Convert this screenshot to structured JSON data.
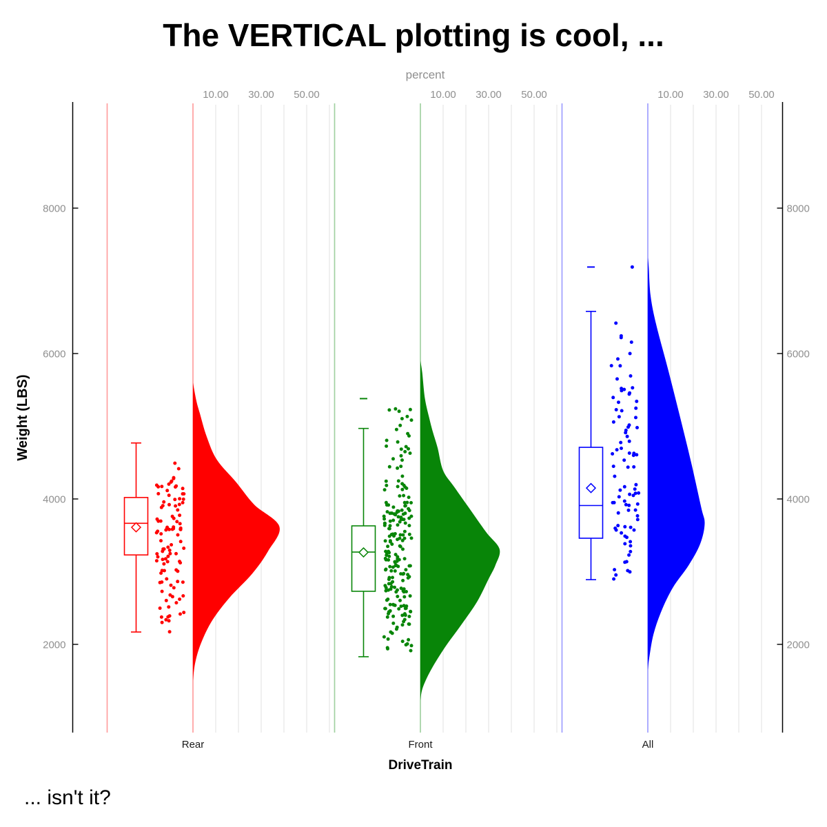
{
  "title": "The VERTICAL plotting is cool, ...",
  "footer": "... isn't it?",
  "chart_data": {
    "type": "raincloud (half-violin + box plot + jittered strip, vertical)",
    "title": "The VERTICAL plotting is cool, ...",
    "caption": "... isn't it?",
    "x_axis": {
      "label": "DriveTrain",
      "categories": [
        "Rear",
        "Front",
        "All"
      ]
    },
    "y_axis": {
      "label": "Weight (LBS)",
      "ticks": [
        8000,
        6000,
        4000,
        2000
      ],
      "range": [
        790,
        9440
      ],
      "shown_on": "left and right"
    },
    "top_axis": {
      "label": "percent",
      "tick_labels": [
        "10.00",
        "30.00",
        "50.00"
      ],
      "ticks_percent": [
        10,
        30,
        50
      ],
      "gridlines_percent": [
        10,
        20,
        30,
        40,
        50,
        60
      ],
      "repeated_per_group": true
    },
    "grid": "light vertical gridlines for percent axis only",
    "groups": [
      {
        "name": "Rear",
        "color": "#FF0000",
        "n_points": 102,
        "points_seed": 3,
        "points_weight_range": [
          2170,
          4780
        ],
        "box": {
          "whisker_low": 2170,
          "q1": 3230,
          "median": 3665,
          "q3": 4020,
          "whisker_high": 4770,
          "mean": 3610
        },
        "outlier_caps": [],
        "extra_points": [],
        "violin_profile_weight_percent": [
          [
            5600,
            0
          ],
          [
            5350,
            1.5
          ],
          [
            5180,
            3
          ],
          [
            4860,
            6
          ],
          [
            4540,
            10.5
          ],
          [
            4230,
            19
          ],
          [
            3920,
            27
          ],
          [
            3620,
            38
          ],
          [
            3280,
            33
          ],
          [
            2970,
            26
          ],
          [
            2640,
            16
          ],
          [
            2330,
            8.5
          ],
          [
            2020,
            3.6
          ],
          [
            1750,
            1
          ],
          [
            1500,
            0
          ]
        ]
      },
      {
        "name": "Front",
        "color": "#088508",
        "n_points": 212,
        "points_seed": 17,
        "points_weight_range": [
          1830,
          5400
        ],
        "box": {
          "whisker_low": 1830,
          "q1": 2730,
          "median": 3270,
          "q3": 3630,
          "whisker_high": 4970,
          "mean": 3265
        },
        "outlier_caps": [
          5380
        ],
        "extra_points": [],
        "violin_profile_weight_percent": [
          [
            5900,
            0
          ],
          [
            5740,
            0.8
          ],
          [
            5380,
            2
          ],
          [
            5100,
            4
          ],
          [
            4920,
            5.5
          ],
          [
            4700,
            7.6
          ],
          [
            4390,
            10
          ],
          [
            4160,
            15
          ],
          [
            3850,
            22
          ],
          [
            3540,
            29
          ],
          [
            3310,
            34.8
          ],
          [
            3090,
            33
          ],
          [
            2900,
            30
          ],
          [
            2590,
            25
          ],
          [
            2270,
            18
          ],
          [
            1950,
            10.6
          ],
          [
            1640,
            4.5
          ],
          [
            1400,
            1
          ],
          [
            1230,
            0
          ]
        ]
      },
      {
        "name": "All",
        "color": "#0000FF",
        "n_points": 86,
        "points_seed": 9,
        "points_weight_range": [
          2890,
          6450
        ],
        "box": {
          "whisker_low": 2890,
          "q1": 3460,
          "median": 3910,
          "q3": 4710,
          "whisker_high": 6580,
          "mean": 4150
        },
        "outlier_caps": [
          7190
        ],
        "extra_points": [
          [
            0.76,
            7190
          ]
        ],
        "violin_profile_weight_percent": [
          [
            7320,
            0
          ],
          [
            7190,
            0.4
          ],
          [
            6800,
            1.2
          ],
          [
            6410,
            3.6
          ],
          [
            5770,
            9
          ],
          [
            5150,
            14
          ],
          [
            4510,
            19
          ],
          [
            3880,
            23.5
          ],
          [
            3660,
            25
          ],
          [
            3380,
            23
          ],
          [
            3090,
            18
          ],
          [
            2780,
            11
          ],
          [
            2460,
            6
          ],
          [
            2140,
            2.5
          ],
          [
            1830,
            0.7
          ],
          [
            1650,
            0
          ]
        ]
      }
    ]
  }
}
